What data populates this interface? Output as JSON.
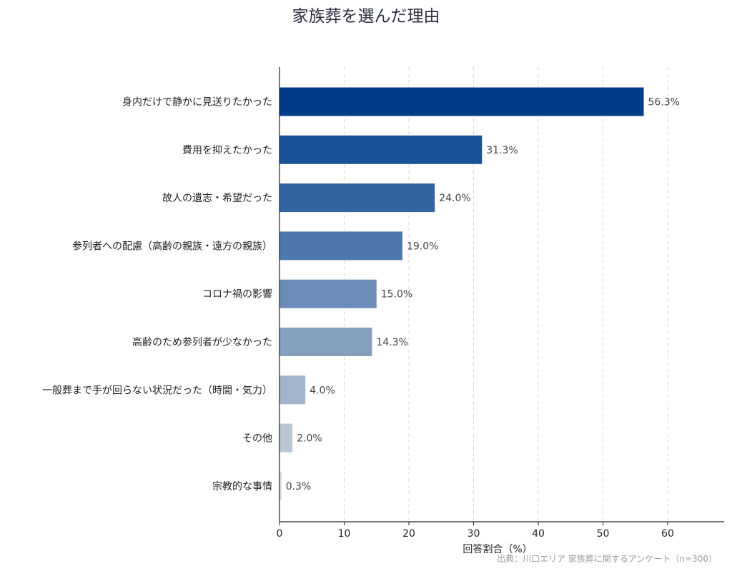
{
  "chart_data": {
    "type": "bar",
    "orientation": "horizontal",
    "title": "家族葬を選んだ理由",
    "categories": [
      "身内だけで静かに見送りたかった",
      "費用を抑えたかった",
      "故人の遺志・希望だった",
      "参列者への配慮（高齢の親族・遠方の親族）",
      "コロナ禍の影響",
      "高齢のため参列者が少なかった",
      "一般葬まで手が回らない状況だった（時間・気力）",
      "その他",
      "宗教的な事情"
    ],
    "values": [
      56.3,
      31.3,
      24.0,
      19.0,
      15.0,
      14.3,
      4.0,
      2.0,
      0.3
    ],
    "value_labels": [
      "56.3%",
      "31.3%",
      "24.0%",
      "19.0%",
      "15.0%",
      "14.3%",
      "4.0%",
      "2.0%",
      "0.3%"
    ],
    "colors": [
      "#003c88",
      "#1a5299",
      "#34649f",
      "#4d78ab",
      "#6a8cb7",
      "#86a0c0",
      "#a3b5cb",
      "#bac6d6",
      "#d6dce6"
    ],
    "xlabel": "回答割合（%）",
    "ylabel": "",
    "xlim": [
      0,
      68.5
    ],
    "xticks": [
      0,
      10,
      20,
      30,
      40,
      50,
      60
    ],
    "grid": "vertical dashed",
    "legend": "none"
  },
  "source": "出典：川口エリア 家族葬に関するアンケート（n=300）"
}
